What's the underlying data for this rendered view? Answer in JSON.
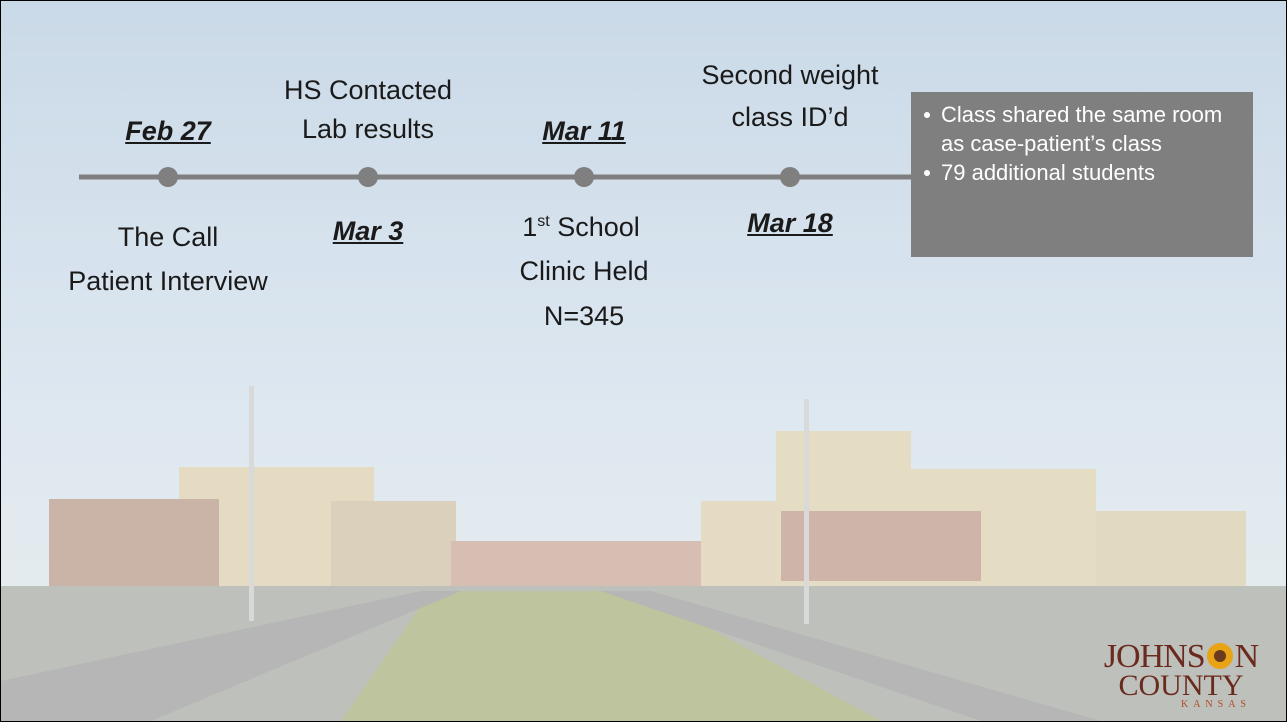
{
  "timeline": {
    "events": [
      {
        "date": "Feb 27",
        "lines": [
          "The Call",
          "Patient Interview"
        ]
      },
      {
        "date": "Mar 3",
        "lines": [
          "HS Contacted",
          "Lab results"
        ]
      },
      {
        "date": "Mar 11",
        "lines": [
          "1",
          "st",
          " School",
          "Clinic Held",
          "N=345"
        ]
      },
      {
        "date": "Mar 18",
        "lines": [
          "Second weight",
          "class ID’d"
        ]
      }
    ]
  },
  "callout": {
    "bullets": [
      "Class shared the same room as case-patient’s class",
      "79 additional students"
    ]
  },
  "logo": {
    "name_a": "JOHNS",
    "name_b": "N",
    "county": "COUNTY",
    "state": "KANSAS"
  }
}
